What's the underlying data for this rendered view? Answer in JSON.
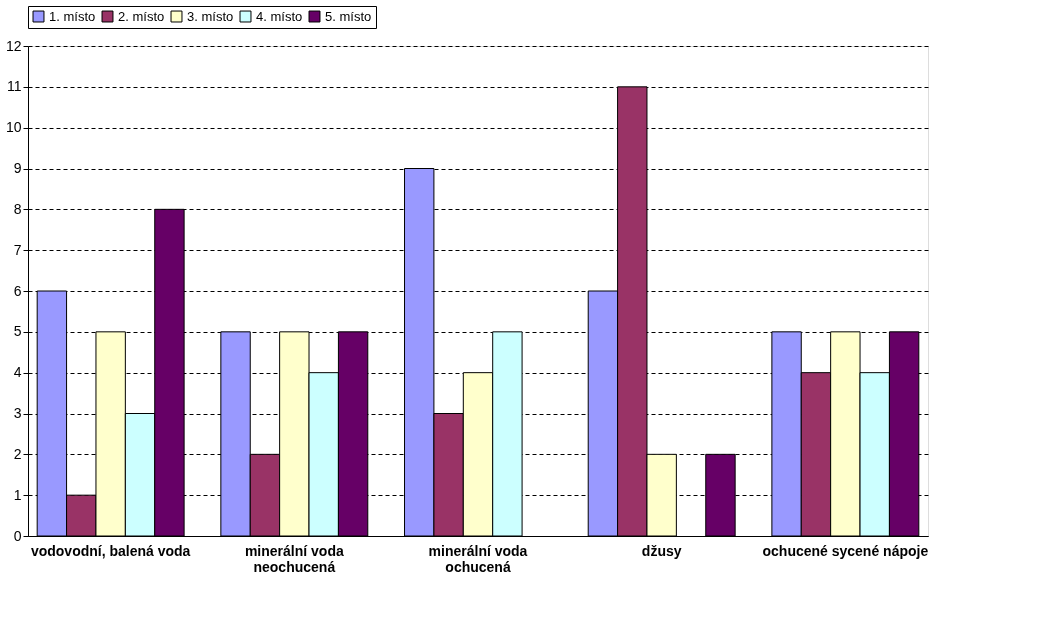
{
  "chart_data": {
    "type": "bar",
    "categories": [
      "vodovodní, balená voda",
      "minerální voda neochucená",
      "minerální voda ochucená",
      "džusy",
      "ochucené sycené nápoje"
    ],
    "series": [
      {
        "name": "1. místo",
        "color": "#9999ff",
        "values": [
          6,
          5,
          9,
          6,
          5
        ]
      },
      {
        "name": "2. místo",
        "color": "#993366",
        "values": [
          1,
          2,
          3,
          11,
          4
        ]
      },
      {
        "name": "3. místo",
        "color": "#ffffcc",
        "values": [
          5,
          5,
          4,
          2,
          5
        ]
      },
      {
        "name": "4. místo",
        "color": "#ccffff",
        "values": [
          3,
          4,
          5,
          null,
          4
        ]
      },
      {
        "name": "5. místo",
        "color": "#660066",
        "values": [
          8,
          5,
          null,
          2,
          5
        ]
      }
    ],
    "ylim": [
      0,
      12
    ],
    "yticks": [
      0,
      1,
      2,
      3,
      4,
      5,
      6,
      7,
      8,
      9,
      10,
      11,
      12
    ],
    "grid": "y",
    "legend": "top"
  }
}
